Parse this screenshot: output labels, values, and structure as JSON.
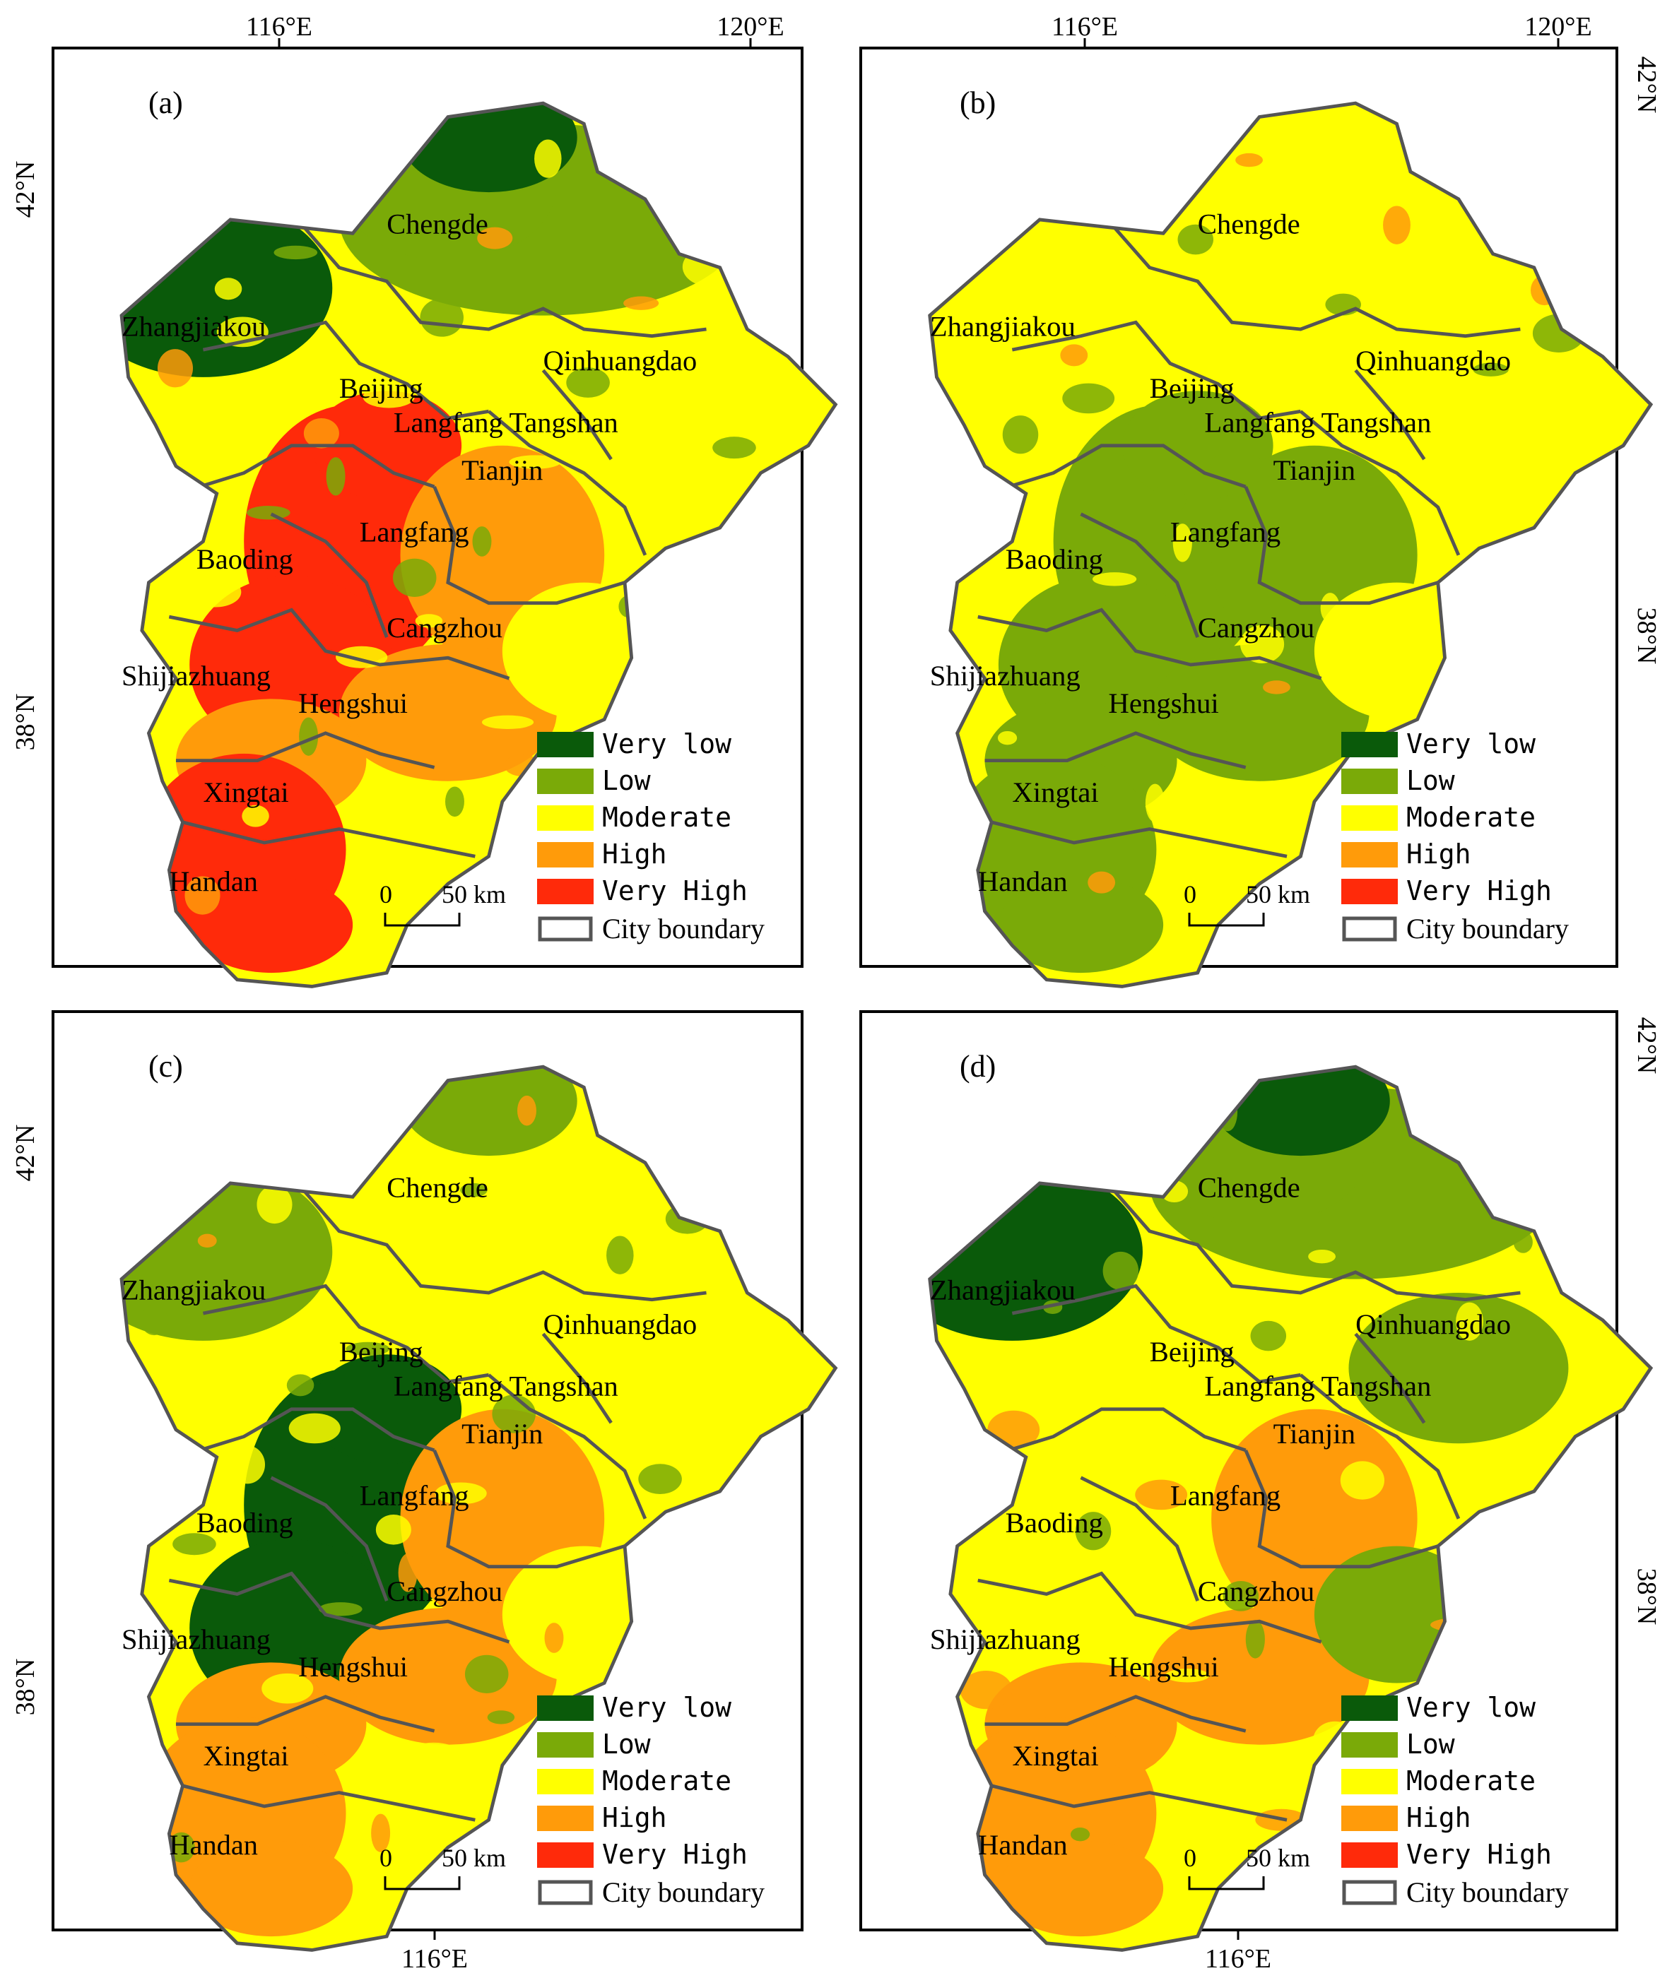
{
  "colors": {
    "very_low": "#0a5a0a",
    "low": "#7aaa08",
    "moderate": "#ffff00",
    "high": "#ff9b0a",
    "very_high": "#ff2a0a",
    "boundary": "#555555"
  },
  "legend": {
    "classes": [
      {
        "label": "Very low",
        "color": "#0a5a0a"
      },
      {
        "label": "Low",
        "color": "#7aaa08"
      },
      {
        "label": "Moderate",
        "color": "#ffff00"
      },
      {
        "label": "High",
        "color": "#ff9b0a"
      },
      {
        "label": "Very High",
        "color": "#ff2a0a"
      }
    ],
    "boundary_label": "City boundary"
  },
  "scale_bar": {
    "zero": "0",
    "dist": "50 km"
  },
  "ticks": {
    "lon116": "116°E",
    "lon120": "120°E",
    "lat42": "42°N",
    "lat38": "38°N"
  },
  "cities": [
    "Chengde",
    "Zhangjiakou",
    "Qinhuangdao",
    "Beijing",
    "Langfang",
    "Tangshan",
    "Tianjin",
    "Langfang",
    "Baoding",
    "Cangzhou",
    "Shijiazhuang",
    "Hengshui",
    "Xingtai",
    "Handan"
  ],
  "panels": [
    {
      "title": "(a)",
      "base": "moderate",
      "north_fill": "low",
      "northwest_fill": "very_low",
      "core_fill": "very_high",
      "belt_fill": "high",
      "east_fill": "moderate",
      "south_fill": "very_high"
    },
    {
      "title": "(b)",
      "base": "moderate",
      "north_fill": "moderate",
      "northwest_fill": "moderate",
      "core_fill": "low",
      "belt_fill": "low",
      "east_fill": "moderate",
      "south_fill": "low"
    },
    {
      "title": "(c)",
      "base": "moderate",
      "north_fill": "moderate",
      "northwest_fill": "low",
      "core_fill": "very_low",
      "belt_fill": "high",
      "east_fill": "moderate",
      "south_fill": "high"
    },
    {
      "title": "(d)",
      "base": "moderate",
      "north_fill": "low",
      "northwest_fill": "very_low",
      "core_fill": "moderate",
      "belt_fill": "high",
      "east_fill": "low",
      "south_fill": "high"
    }
  ]
}
